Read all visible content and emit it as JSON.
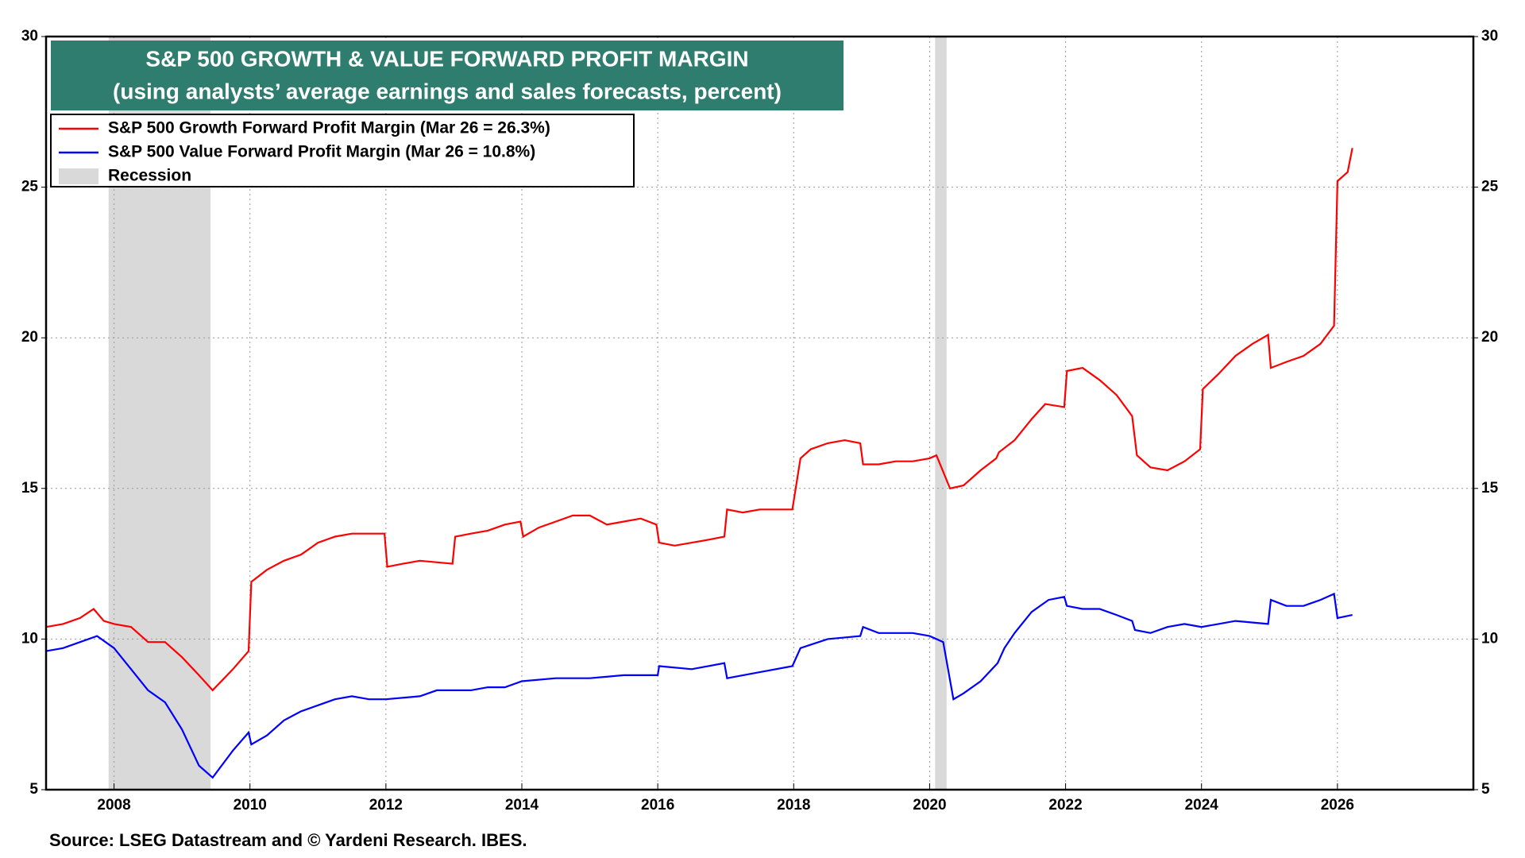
{
  "chart_data": {
    "type": "line",
    "title": "S&P 500 GROWTH & VALUE FORWARD PROFIT MARGIN",
    "subtitle": "(using analysts’ average earnings and sales forecasts, percent)",
    "title_color": "#2e7d6f",
    "source": "Source: LSEG Datastream and © Yardeni Research. IBES.",
    "xlim": [
      2007,
      2028
    ],
    "xticks": [
      2008,
      2010,
      2012,
      2014,
      2016,
      2018,
      2020,
      2022,
      2024,
      2026
    ],
    "ylim": [
      5,
      30
    ],
    "yticks": [
      5,
      10,
      15,
      20,
      25,
      30
    ],
    "y2lim": [
      5,
      30
    ],
    "y2ticks": [
      5,
      10,
      15,
      20,
      25,
      30
    ],
    "grid": true,
    "legend": "upper left",
    "recession": {
      "label": "Recession",
      "color": "#d9d9d9",
      "spans": [
        [
          2007.92,
          2009.42
        ],
        [
          2020.08,
          2020.25
        ]
      ]
    },
    "series": [
      {
        "name": "S&P 500 Growth Forward Profit Margin (Mar 26 = 26.3%)",
        "color": "#ff0000",
        "x": [
          2007.0,
          2007.25,
          2007.5,
          2007.7,
          2007.85,
          2008.0,
          2008.25,
          2008.5,
          2008.75,
          2009.0,
          2009.25,
          2009.45,
          2009.75,
          2009.98,
          2010.02,
          2010.25,
          2010.5,
          2010.75,
          2011.0,
          2011.25,
          2011.5,
          2011.75,
          2011.98,
          2012.02,
          2012.25,
          2012.5,
          2012.98,
          2013.02,
          2013.25,
          2013.5,
          2013.75,
          2013.98,
          2014.02,
          2014.25,
          2014.5,
          2014.75,
          2015.0,
          2015.25,
          2015.5,
          2015.75,
          2015.98,
          2016.02,
          2016.25,
          2016.5,
          2016.75,
          2016.98,
          2017.02,
          2017.25,
          2017.5,
          2017.98,
          2018.1,
          2018.25,
          2018.5,
          2018.75,
          2018.98,
          2019.02,
          2019.25,
          2019.5,
          2019.75,
          2020.0,
          2020.1,
          2020.3,
          2020.5,
          2020.75,
          2020.98,
          2021.02,
          2021.25,
          2021.5,
          2021.7,
          2021.98,
          2022.02,
          2022.25,
          2022.5,
          2022.75,
          2022.98,
          2023.05,
          2023.25,
          2023.5,
          2023.75,
          2023.98,
          2024.02,
          2024.25,
          2024.5,
          2024.75,
          2024.98,
          2025.02,
          2025.25,
          2025.5,
          2025.75,
          2025.95,
          2026.0,
          2026.15,
          2026.22
        ],
        "values": [
          10.4,
          10.5,
          10.7,
          11.0,
          10.6,
          10.5,
          10.4,
          9.9,
          9.9,
          9.4,
          8.8,
          8.3,
          9.0,
          9.6,
          11.9,
          12.3,
          12.6,
          12.8,
          13.2,
          13.4,
          13.5,
          13.5,
          13.5,
          12.4,
          12.5,
          12.6,
          12.5,
          13.4,
          13.5,
          13.6,
          13.8,
          13.9,
          13.4,
          13.7,
          13.9,
          14.1,
          14.1,
          13.8,
          13.9,
          14.0,
          13.8,
          13.2,
          13.1,
          13.2,
          13.3,
          13.4,
          14.3,
          14.2,
          14.3,
          14.3,
          16.0,
          16.3,
          16.5,
          16.6,
          16.5,
          15.8,
          15.8,
          15.9,
          15.9,
          16.0,
          16.1,
          15.0,
          15.1,
          15.6,
          16.0,
          16.2,
          16.6,
          17.3,
          17.8,
          17.7,
          18.9,
          19.0,
          18.6,
          18.1,
          17.4,
          16.1,
          15.7,
          15.6,
          15.9,
          16.3,
          18.3,
          18.8,
          19.4,
          19.8,
          20.1,
          19.0,
          19.2,
          19.4,
          19.8,
          20.4,
          25.2,
          25.5,
          26.3
        ]
      },
      {
        "name": "S&P 500 Value Forward Profit Margin (Mar 26 = 10.8%)",
        "color": "#0000ff",
        "x": [
          2007.0,
          2007.25,
          2007.5,
          2007.75,
          2008.0,
          2008.25,
          2008.5,
          2008.75,
          2009.0,
          2009.25,
          2009.45,
          2009.75,
          2009.98,
          2010.02,
          2010.25,
          2010.5,
          2010.75,
          2011.0,
          2011.25,
          2011.5,
          2011.75,
          2012.0,
          2012.5,
          2012.75,
          2013.0,
          2013.25,
          2013.5,
          2013.75,
          2014.0,
          2014.5,
          2015.0,
          2015.5,
          2016.0,
          2016.02,
          2016.5,
          2016.98,
          2017.02,
          2017.5,
          2017.98,
          2018.1,
          2018.5,
          2018.98,
          2019.02,
          2019.25,
          2019.75,
          2020.0,
          2020.2,
          2020.35,
          2020.5,
          2020.75,
          2021.0,
          2021.1,
          2021.25,
          2021.5,
          2021.75,
          2021.98,
          2022.02,
          2022.25,
          2022.5,
          2022.75,
          2022.98,
          2023.02,
          2023.25,
          2023.5,
          2023.75,
          2024.0,
          2024.25,
          2024.5,
          2024.98,
          2025.02,
          2025.25,
          2025.5,
          2025.75,
          2025.95,
          2026.0,
          2026.22
        ],
        "values": [
          9.6,
          9.7,
          9.9,
          10.1,
          9.7,
          9.0,
          8.3,
          7.9,
          7.0,
          5.8,
          5.4,
          6.3,
          6.9,
          6.5,
          6.8,
          7.3,
          7.6,
          7.8,
          8.0,
          8.1,
          8.0,
          8.0,
          8.1,
          8.3,
          8.3,
          8.3,
          8.4,
          8.4,
          8.6,
          8.7,
          8.7,
          8.8,
          8.8,
          9.1,
          9.0,
          9.2,
          8.7,
          8.9,
          9.1,
          9.7,
          10.0,
          10.1,
          10.4,
          10.2,
          10.2,
          10.1,
          9.9,
          8.0,
          8.2,
          8.6,
          9.2,
          9.7,
          10.2,
          10.9,
          11.3,
          11.4,
          11.1,
          11.0,
          11.0,
          10.8,
          10.6,
          10.3,
          10.2,
          10.4,
          10.5,
          10.4,
          10.5,
          10.6,
          10.5,
          11.3,
          11.1,
          11.1,
          11.3,
          11.5,
          10.7,
          10.8
        ]
      }
    ]
  }
}
